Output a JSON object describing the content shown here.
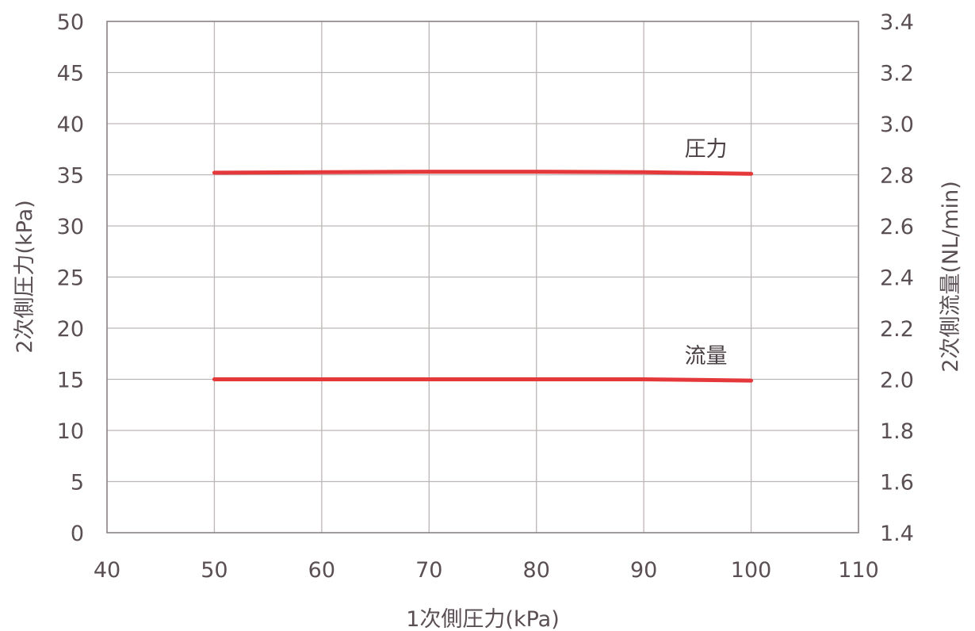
{
  "chart_data": {
    "type": "line",
    "title": "",
    "xlabel": "1次側圧力(kPa)",
    "ylabel": "2次側圧力(kPa)",
    "y2label": "2次側流量(NL/min)",
    "xlim": [
      40,
      110
    ],
    "ylim": [
      0,
      50
    ],
    "y2lim": [
      1.4,
      3.4
    ],
    "xticks": [
      "40",
      "50",
      "60",
      "70",
      "80",
      "90",
      "100",
      "110"
    ],
    "yticks": [
      "0",
      "5",
      "10",
      "15",
      "20",
      "25",
      "30",
      "35",
      "40",
      "45",
      "50"
    ],
    "y2ticks": [
      "1.4",
      "1.6",
      "1.8",
      "2.0",
      "2.2",
      "2.4",
      "2.6",
      "2.8",
      "3.0",
      "3.2",
      "3.4"
    ],
    "grid": true,
    "series": [
      {
        "name": "圧力",
        "axis": "left",
        "color": "#e5383b",
        "x": [
          50,
          60,
          70,
          80,
          90,
          100
        ],
        "y": [
          35.2,
          35.25,
          35.3,
          35.3,
          35.25,
          35.1
        ]
      },
      {
        "name": "流量",
        "axis": "right",
        "color": "#e5383b",
        "x": [
          50,
          60,
          70,
          80,
          90,
          100
        ],
        "y": [
          2.0,
          2.0,
          2.0,
          2.0,
          2.0,
          1.995
        ]
      }
    ]
  }
}
